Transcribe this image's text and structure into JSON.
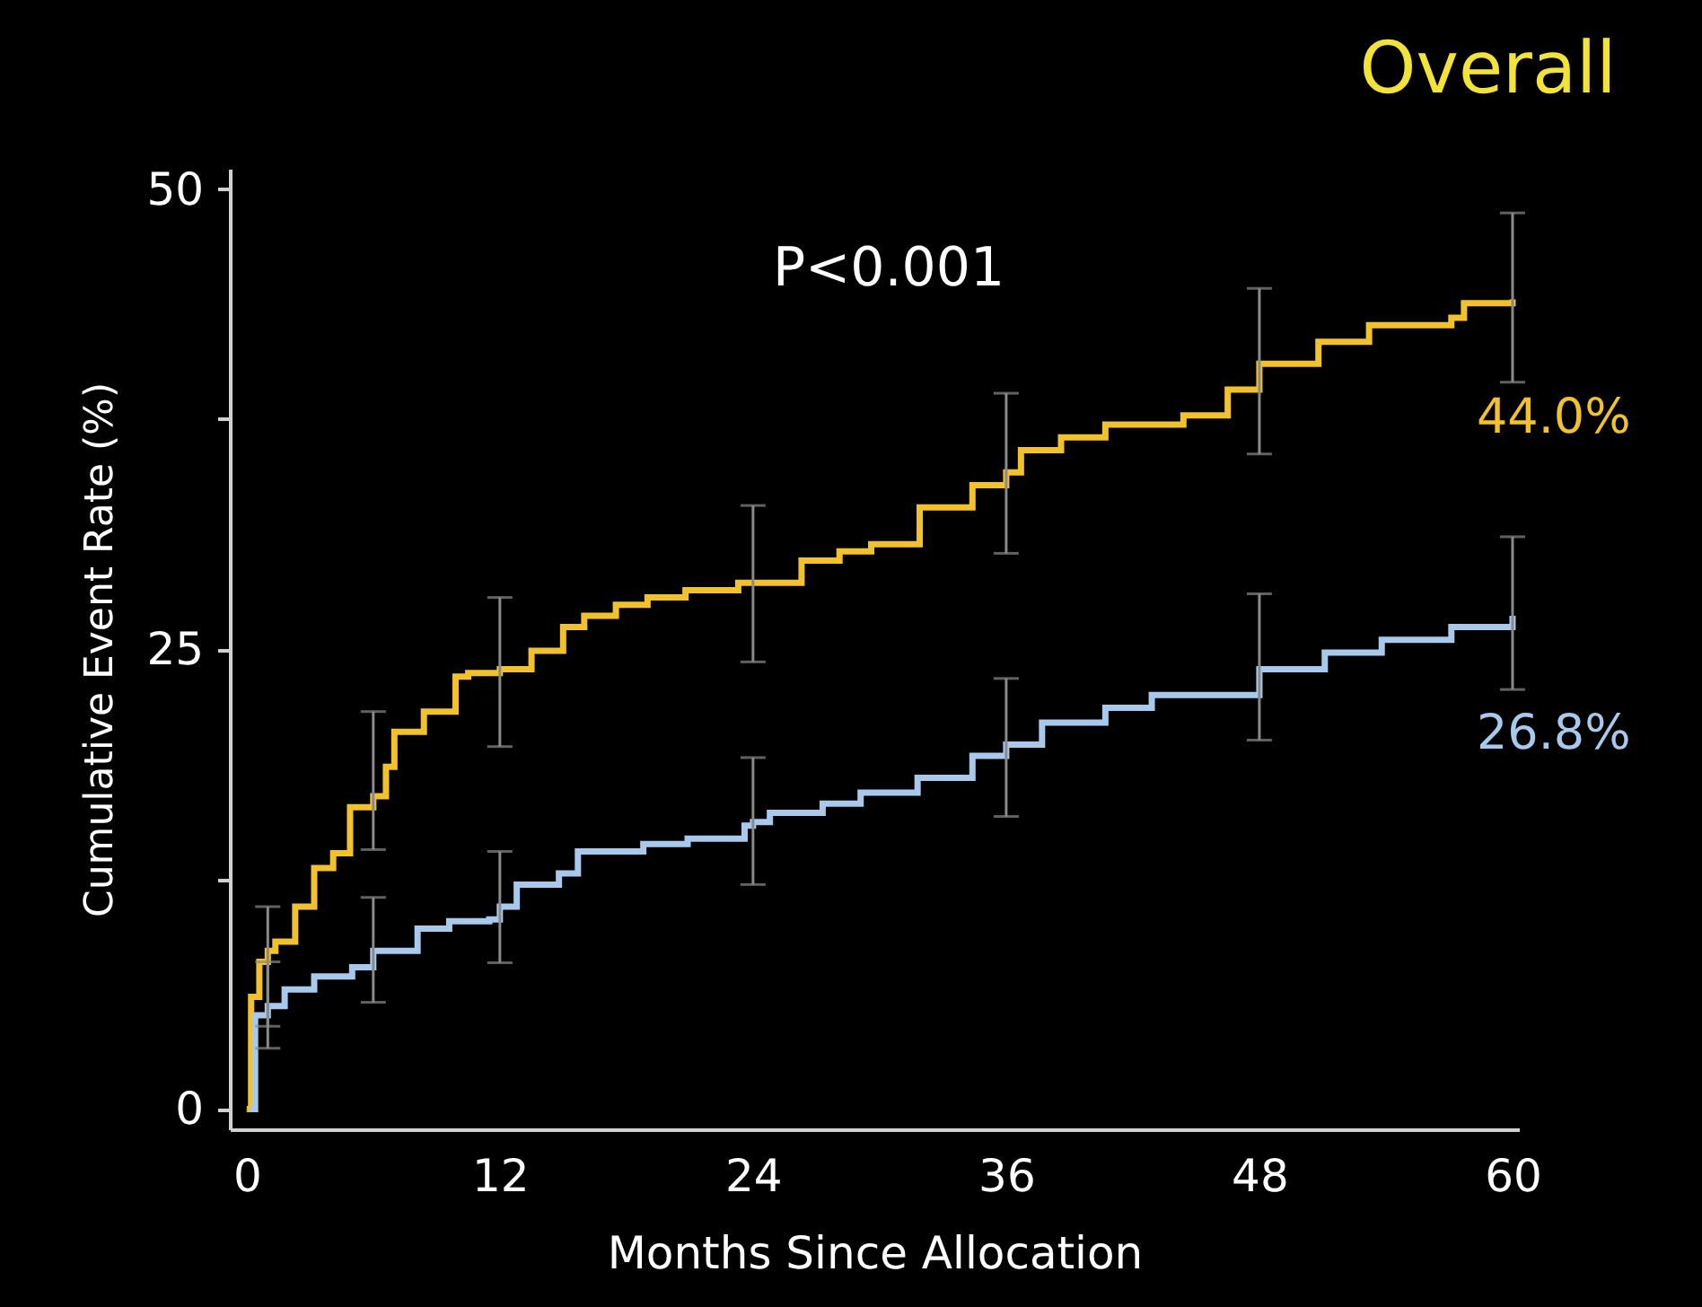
{
  "chart_data": {
    "type": "step",
    "title": "Overall",
    "xlabel": "Months Since Allocation",
    "ylabel": "Cumulative Event Rate (%)",
    "xlim": [
      -0.8,
      60.3
    ],
    "xticks": [
      0,
      12,
      24,
      36,
      48,
      60
    ],
    "ylim": [
      -1.1,
      51.1
    ],
    "yticks": [
      0,
      {
        "value": 12.5,
        "label": null
      },
      25,
      {
        "value": 37.5,
        "label": null
      },
      50
    ],
    "grid": false,
    "legend": false,
    "marker": "none",
    "line_style": "solid",
    "annotations": [
      "P<0.001"
    ],
    "series": [
      {
        "color": "#f2c12e",
        "x": [
          0,
          0.21,
          0.6,
          1,
          1.36,
          2.3,
          3.2,
          4.1,
          4.9,
          6,
          6.6,
          7.0,
          8.4,
          9.9,
          10.5,
          12,
          13.5,
          15.0,
          16.0,
          17.5,
          19.0,
          20.8,
          23.3,
          24,
          25.4,
          26.3,
          28.1,
          29.6,
          31.9,
          34.4,
          36,
          36.7,
          38.6,
          40.7,
          44.4,
          46.5,
          48,
          50.8,
          53.2,
          57.1,
          57.7,
          60
        ],
        "values": [
          0,
          6.1,
          8.0,
          8.6,
          9.1,
          11.0,
          13.1,
          13.9,
          16.4,
          17.0,
          18.6,
          20.5,
          21.6,
          23.5,
          23.7,
          23.9,
          24.9,
          26.2,
          26.8,
          27.4,
          27.8,
          28.2,
          28.6,
          28.6,
          28.6,
          29.8,
          30.3,
          30.7,
          32.7,
          33.9,
          34.6,
          35.8,
          36.5,
          37.2,
          37.7,
          39.1,
          40.5,
          41.7,
          42.6,
          43.0,
          43.8,
          44.0
        ],
        "errors": [
          null,
          null,
          null,
          [
            4.5,
            11.0
          ],
          null,
          null,
          null,
          null,
          null,
          [
            14.1,
            21.6
          ],
          null,
          null,
          null,
          null,
          null,
          [
            19.7,
            27.8
          ],
          null,
          null,
          null,
          null,
          null,
          null,
          null,
          [
            24.3,
            32.8
          ],
          null,
          null,
          null,
          null,
          null,
          null,
          [
            30.2,
            38.9
          ],
          null,
          null,
          null,
          null,
          null,
          [
            35.6,
            44.6
          ],
          null,
          null,
          null,
          null,
          [
            39.5,
            48.7
          ]
        ],
        "value_labels": [
          null,
          null,
          null,
          null,
          null,
          null,
          null,
          null,
          null,
          null,
          null,
          null,
          null,
          null,
          null,
          null,
          null,
          null,
          null,
          null,
          null,
          null,
          null,
          null,
          null,
          null,
          null,
          null,
          null,
          null,
          null,
          null,
          null,
          null,
          null,
          null,
          null,
          null,
          null,
          null,
          null,
          "44.0%"
        ]
      },
      {
        "color": "#a8c8ec",
        "x": [
          0.16,
          0.4,
          1,
          1.8,
          3.2,
          5.0,
          6,
          7.5,
          8.1,
          9.6,
          11.5,
          12,
          12.8,
          14.8,
          15.7,
          18.8,
          20.9,
          23.6,
          24,
          24.8,
          27.3,
          29.1,
          31.8,
          34.4,
          36,
          37.7,
          40.7,
          42.9,
          48,
          51.1,
          53.8,
          57.1,
          60
        ],
        "values": [
          0,
          5.1,
          5.6,
          6.5,
          7.2,
          7.7,
          8.6,
          8.6,
          9.8,
          10.2,
          10.3,
          11.0,
          12.2,
          12.8,
          14.0,
          14.4,
          14.7,
          15.4,
          15.6,
          16.1,
          16.6,
          17.2,
          18.0,
          19.2,
          19.8,
          21.0,
          21.8,
          22.5,
          23.9,
          24.8,
          25.5,
          26.2,
          26.8
        ],
        "errors": [
          null,
          null,
          [
            3.3,
            8.0
          ],
          null,
          null,
          null,
          [
            5.8,
            11.5
          ],
          null,
          null,
          null,
          null,
          [
            7.95,
            14.0
          ],
          null,
          null,
          null,
          null,
          null,
          null,
          [
            12.2,
            19.1
          ],
          null,
          null,
          null,
          null,
          null,
          [
            15.9,
            23.4
          ],
          null,
          null,
          null,
          [
            20.05,
            28.0
          ],
          null,
          null,
          null,
          [
            22.8,
            31.1
          ]
        ],
        "value_labels": [
          null,
          null,
          null,
          null,
          null,
          null,
          null,
          null,
          null,
          null,
          null,
          null,
          null,
          null,
          null,
          null,
          null,
          null,
          null,
          null,
          null,
          null,
          null,
          null,
          null,
          null,
          null,
          null,
          null,
          null,
          null,
          null,
          "26.8%"
        ]
      }
    ]
  }
}
